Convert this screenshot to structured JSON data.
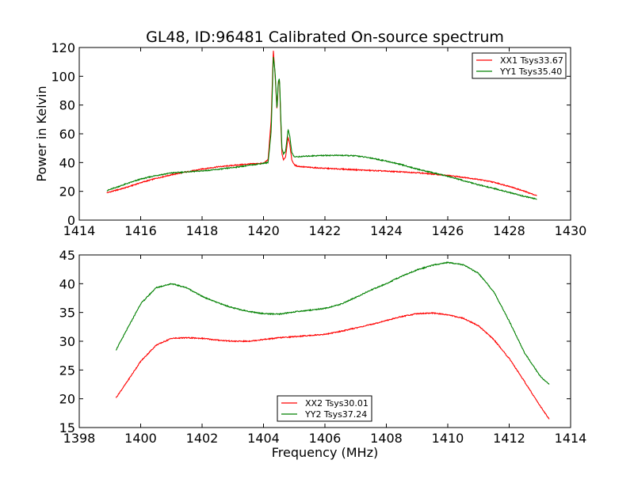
{
  "figure": {
    "title": "GL48, ID:96481 Calibrated On-source spectrum"
  },
  "chart_data": [
    {
      "type": "line",
      "ylabel": "Power in Kelvin",
      "xlabel": "",
      "xlim": [
        1414,
        1430
      ],
      "ylim": [
        0,
        120
      ],
      "xticks": [
        1414,
        1416,
        1418,
        1420,
        1422,
        1424,
        1426,
        1428,
        1430
      ],
      "yticks": [
        0,
        20,
        40,
        60,
        80,
        100,
        120
      ],
      "legend_position": "upper right",
      "series": [
        {
          "name": "XX1 Tsys33.67",
          "color": "#ff0000",
          "x": [
            1414.9,
            1415.5,
            1416.0,
            1416.5,
            1417.0,
            1417.5,
            1418.0,
            1418.5,
            1419.0,
            1419.5,
            1420.0,
            1420.15,
            1420.25,
            1420.32,
            1420.38,
            1420.44,
            1420.48,
            1420.52,
            1420.56,
            1420.6,
            1420.65,
            1420.72,
            1420.8,
            1420.86,
            1420.92,
            1421.0,
            1421.1,
            1421.3,
            1421.6,
            1422.0,
            1422.5,
            1423.0,
            1423.5,
            1424.0,
            1424.5,
            1425.0,
            1425.5,
            1426.0,
            1426.5,
            1427.0,
            1427.5,
            1428.0,
            1428.5,
            1428.9
          ],
          "y": [
            19,
            22.5,
            26,
            29,
            31.5,
            33.5,
            35.5,
            37,
            38,
            39,
            39.5,
            42,
            70,
            118,
            100,
            76,
            95,
            98,
            70,
            46,
            42,
            44,
            58,
            52,
            42,
            38.5,
            37.5,
            37,
            36.5,
            36,
            35.5,
            35,
            34.5,
            34,
            33.5,
            33,
            32,
            31,
            29.8,
            28.3,
            26.3,
            23.5,
            20,
            17
          ]
        },
        {
          "name": "YY1 Tsys35.40",
          "color": "#008000",
          "x": [
            1414.9,
            1415.5,
            1416.0,
            1416.5,
            1417.0,
            1417.5,
            1418.0,
            1418.5,
            1419.0,
            1419.5,
            1420.0,
            1420.15,
            1420.25,
            1420.32,
            1420.38,
            1420.44,
            1420.48,
            1420.52,
            1420.56,
            1420.6,
            1420.65,
            1420.72,
            1420.8,
            1420.86,
            1420.92,
            1421.0,
            1421.1,
            1421.3,
            1421.6,
            1422.0,
            1422.5,
            1423.0,
            1423.5,
            1424.0,
            1424.5,
            1425.0,
            1425.5,
            1426.0,
            1426.5,
            1427.0,
            1427.5,
            1428.0,
            1428.5,
            1428.9
          ],
          "y": [
            20.5,
            25,
            28.5,
            31,
            32.8,
            33.5,
            34.2,
            35.2,
            36.5,
            38,
            39.5,
            40,
            62,
            114,
            102,
            77,
            96,
            99,
            73,
            50,
            46,
            48,
            63,
            58,
            47,
            44,
            44,
            44.3,
            44.7,
            45,
            45,
            44.7,
            43.2,
            41,
            38.5,
            35.5,
            33,
            30.5,
            27.5,
            24.5,
            22,
            19.2,
            16.5,
            14.5
          ]
        }
      ]
    },
    {
      "type": "line",
      "xlabel": "Frequency (MHz)",
      "ylabel": "",
      "xlim": [
        1398,
        1414
      ],
      "ylim": [
        15,
        45
      ],
      "xticks": [
        1398,
        1400,
        1402,
        1404,
        1406,
        1408,
        1410,
        1412,
        1414
      ],
      "yticks": [
        15,
        20,
        25,
        30,
        35,
        40,
        45
      ],
      "legend_position": "lower center",
      "series": [
        {
          "name": "XX2 Tsys30.01",
          "color": "#ff0000",
          "x": [
            1399.2,
            1399.5,
            1400.0,
            1400.5,
            1401.0,
            1401.5,
            1402.0,
            1402.5,
            1403.0,
            1403.5,
            1404.0,
            1404.5,
            1405.0,
            1405.5,
            1406.0,
            1406.5,
            1407.0,
            1407.5,
            1408.0,
            1408.5,
            1409.0,
            1409.5,
            1410.0,
            1410.5,
            1411.0,
            1411.5,
            1412.0,
            1412.5,
            1413.0,
            1413.3
          ],
          "y": [
            20.2,
            22.5,
            26.5,
            29.3,
            30.5,
            30.6,
            30.5,
            30.2,
            30.0,
            30.0,
            30.3,
            30.6,
            30.8,
            31.0,
            31.2,
            31.7,
            32.3,
            32.9,
            33.6,
            34.3,
            34.8,
            34.9,
            34.6,
            34.0,
            32.7,
            30.3,
            27.0,
            23.0,
            18.8,
            16.5
          ]
        },
        {
          "name": "YY2 Tsys37.24",
          "color": "#008000",
          "x": [
            1399.2,
            1399.5,
            1400.0,
            1400.5,
            1401.0,
            1401.5,
            1402.0,
            1402.5,
            1403.0,
            1403.5,
            1404.0,
            1404.5,
            1405.0,
            1405.5,
            1406.0,
            1406.5,
            1407.0,
            1407.5,
            1408.0,
            1408.5,
            1409.0,
            1409.5,
            1410.0,
            1410.5,
            1411.0,
            1411.5,
            1412.0,
            1412.5,
            1413.0,
            1413.3
          ],
          "y": [
            28.5,
            31.5,
            36.5,
            39.3,
            40.0,
            39.3,
            37.8,
            36.7,
            35.8,
            35.2,
            34.8,
            34.7,
            35.1,
            35.4,
            35.7,
            36.4,
            37.6,
            38.9,
            40.0,
            41.3,
            42.4,
            43.2,
            43.7,
            43.3,
            41.8,
            38.6,
            33.5,
            28.0,
            24.0,
            22.5
          ]
        }
      ]
    }
  ]
}
